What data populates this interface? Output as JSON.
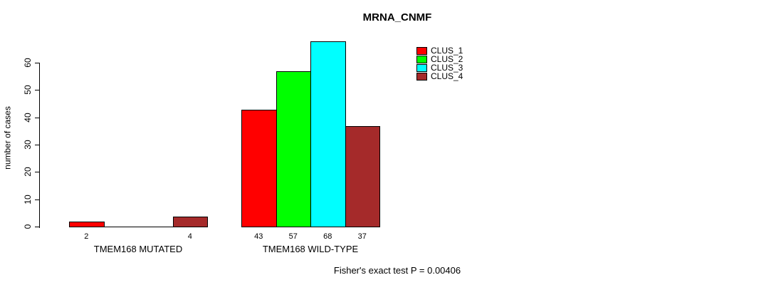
{
  "chart_data": {
    "type": "bar",
    "title": "MRNA_CNMF",
    "ylabel": "number of cases",
    "xlabel": "",
    "ylim": [
      0,
      60
    ],
    "yticks": [
      0,
      10,
      20,
      30,
      40,
      50,
      60
    ],
    "grid": false,
    "legend_position": "top-right",
    "categories": [
      "TMEM168 MUTATED",
      "TMEM168 WILD-TYPE"
    ],
    "series": [
      {
        "name": "CLUS_1",
        "color": "#FF0000",
        "values": [
          2,
          43
        ]
      },
      {
        "name": "CLUS_2",
        "color": "#00FF00",
        "values": [
          0,
          57
        ]
      },
      {
        "name": "CLUS_3",
        "color": "#00FFFF",
        "values": [
          0,
          68
        ]
      },
      {
        "name": "CLUS_4",
        "color": "#A52A2A",
        "values": [
          4,
          37
        ]
      }
    ],
    "value_labels_shown": [
      "2",
      "4",
      "43",
      "57",
      "68",
      "37"
    ],
    "footnote": "Fisher's exact test P = 0.00406",
    "axis_color": "#000000",
    "background_color": "#FFFFFF"
  }
}
